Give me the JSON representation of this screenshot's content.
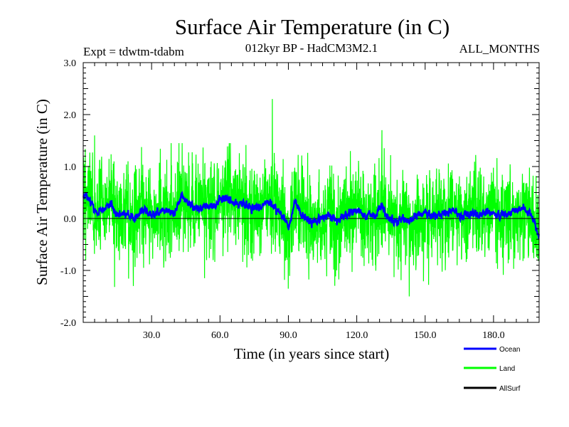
{
  "chart_data": {
    "type": "line",
    "title": "Surface Air Temperature (in C)",
    "subtitle": "012kyr BP - HadCM3M2.1",
    "experiment": "Expt = tdwtm-tdabm",
    "season": "ALL_MONTHS",
    "xlabel": "Time (in years since start)",
    "ylabel": "Surface Air Temperature (in C)",
    "xlim": [
      0,
      200
    ],
    "ylim": [
      -2.0,
      3.0
    ],
    "xticks": [
      30,
      60,
      90,
      120,
      150,
      180
    ],
    "xtick_labels": [
      "30.0",
      "60.0",
      "90.0",
      "120.0",
      "150.0",
      "180.0"
    ],
    "yticks": [
      -2.0,
      -1.0,
      0.0,
      1.0,
      2.0,
      3.0
    ],
    "ytick_labels": [
      "-2.0",
      "-1.0",
      "0.0",
      "1.0",
      "2.0",
      "3.0"
    ],
    "zero_line": true,
    "legend_position": "bottom-right",
    "series": [
      {
        "name": "Land",
        "color": "#00ff00",
        "description": "monthly land-mean anomaly, high variability",
        "x_step_years": 0.0833,
        "summary": {
          "mean": 0.05,
          "min": -1.5,
          "max": 2.3,
          "approx_std": 0.45
        },
        "annotated_extremes": [
          {
            "x": 83,
            "y": 2.3
          },
          {
            "x": 131,
            "y": 1.7
          },
          {
            "x": 5,
            "y": 1.6
          },
          {
            "x": 143,
            "y": -1.5
          },
          {
            "x": 90,
            "y": -1.35
          },
          {
            "x": 22,
            "y": -1.3
          }
        ]
      },
      {
        "name": "Ocean",
        "color": "#0000ff",
        "description": "monthly ocean-mean anomaly, smoother",
        "x_step_years": 0.0833,
        "control_points": [
          [
            0,
            0.45
          ],
          [
            3,
            0.4
          ],
          [
            5,
            0.1
          ],
          [
            8,
            0.15
          ],
          [
            12,
            0.3
          ],
          [
            15,
            0.05
          ],
          [
            19,
            0.1
          ],
          [
            22,
            -0.05
          ],
          [
            27,
            0.2
          ],
          [
            30,
            0.05
          ],
          [
            35,
            0.15
          ],
          [
            40,
            0.1
          ],
          [
            43,
            0.45
          ],
          [
            47,
            0.25
          ],
          [
            52,
            0.2
          ],
          [
            57,
            0.25
          ],
          [
            62,
            0.4
          ],
          [
            66,
            0.3
          ],
          [
            70,
            0.3
          ],
          [
            74,
            0.2
          ],
          [
            78,
            0.25
          ],
          [
            82,
            0.3
          ],
          [
            85,
            0.15
          ],
          [
            88,
            0.05
          ],
          [
            90,
            -0.2
          ],
          [
            93,
            0.35
          ],
          [
            96,
            0.05
          ],
          [
            100,
            -0.1
          ],
          [
            104,
            0.0
          ],
          [
            108,
            0.05
          ],
          [
            112,
            -0.05
          ],
          [
            116,
            0.1
          ],
          [
            120,
            0.15
          ],
          [
            124,
            0.05
          ],
          [
            128,
            0.05
          ],
          [
            131,
            0.25
          ],
          [
            134,
            0.0
          ],
          [
            138,
            -0.05
          ],
          [
            142,
            -0.05
          ],
          [
            146,
            0.05
          ],
          [
            150,
            0.1
          ],
          [
            154,
            0.05
          ],
          [
            158,
            0.05
          ],
          [
            162,
            0.2
          ],
          [
            166,
            0.05
          ],
          [
            170,
            0.1
          ],
          [
            174,
            0.05
          ],
          [
            178,
            0.15
          ],
          [
            182,
            0.05
          ],
          [
            186,
            0.1
          ],
          [
            190,
            0.15
          ],
          [
            194,
            0.2
          ],
          [
            197,
            0.05
          ],
          [
            200,
            -0.35
          ]
        ]
      },
      {
        "name": "AllSurf",
        "color": "#000000",
        "description": "all-surface mean (legend entry)"
      }
    ]
  }
}
